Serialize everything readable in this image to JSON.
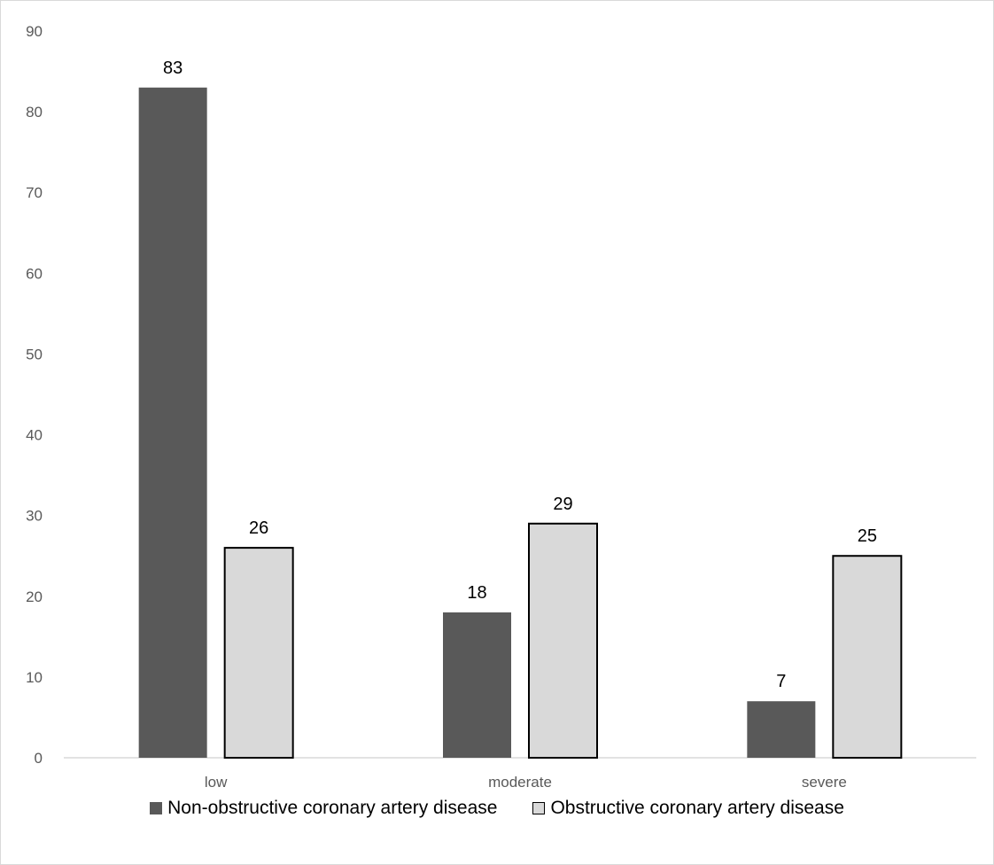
{
  "chart_data": {
    "type": "bar",
    "title": "",
    "xlabel": "",
    "ylabel": "",
    "categories": [
      "low",
      "moderate",
      "severe"
    ],
    "ylim": [
      0,
      90
    ],
    "yticks": [
      0,
      10,
      20,
      30,
      40,
      50,
      60,
      70,
      80,
      90
    ],
    "grid": false,
    "legend_position": "bottom",
    "series": [
      {
        "name": "Non-obstructive coronary artery disease",
        "values": [
          83,
          18,
          7
        ],
        "color": "#595959",
        "border": "#595959"
      },
      {
        "name": "Obstructive coronary artery disease",
        "values": [
          26,
          29,
          25
        ],
        "color": "#d9d9d9",
        "border": "#000000"
      }
    ]
  }
}
